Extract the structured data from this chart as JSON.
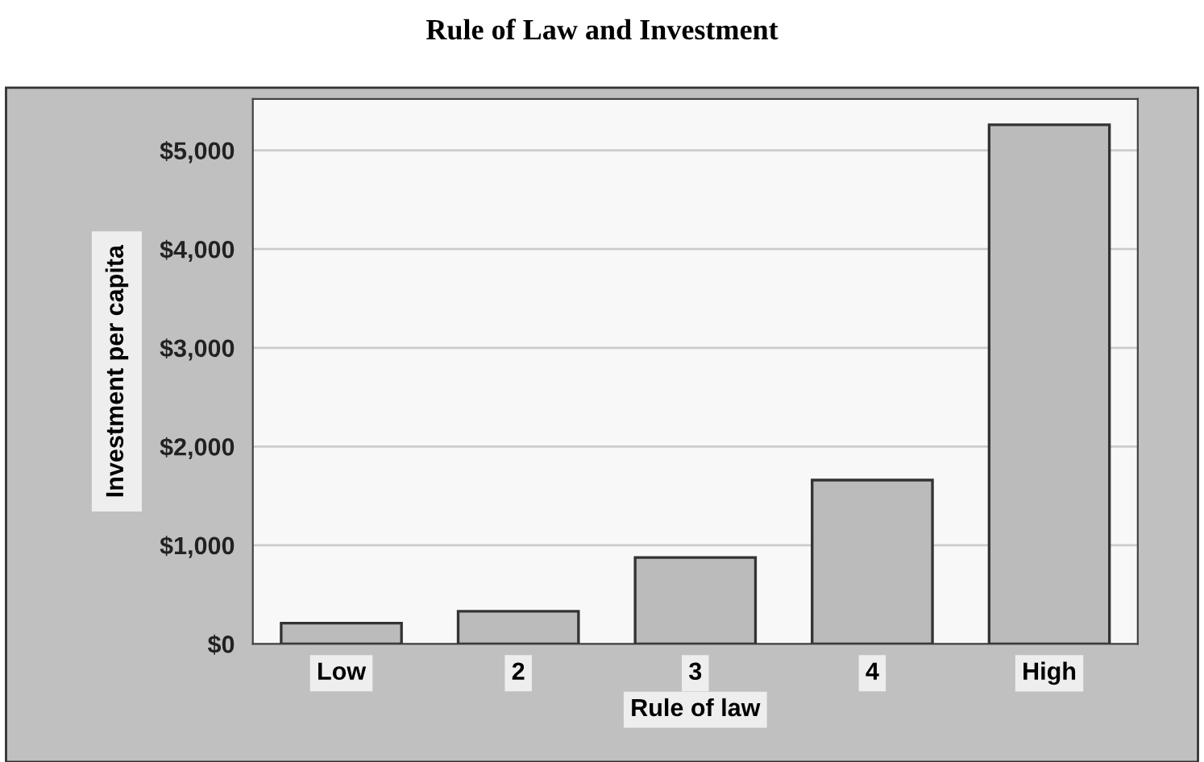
{
  "chart_data": {
    "type": "bar",
    "title": "Rule of Law and Investment",
    "xlabel": "Rule of law",
    "ylabel": "Investment per capita",
    "categories": [
      "Low",
      "2",
      "3",
      "4",
      "High"
    ],
    "values": [
      210,
      330,
      875,
      1660,
      5260
    ],
    "color": "#bbbbbb",
    "ylim": [
      0,
      5520
    ],
    "yticks": [
      {
        "value": 0,
        "label": "$0"
      },
      {
        "value": 1000,
        "label": "$1,000"
      },
      {
        "value": 2000,
        "label": "$2,000"
      },
      {
        "value": 3000,
        "label": "$3,000"
      },
      {
        "value": 4000,
        "label": "$4,000"
      },
      {
        "value": 5000,
        "label": "$5,000"
      }
    ],
    "grid": "y"
  }
}
